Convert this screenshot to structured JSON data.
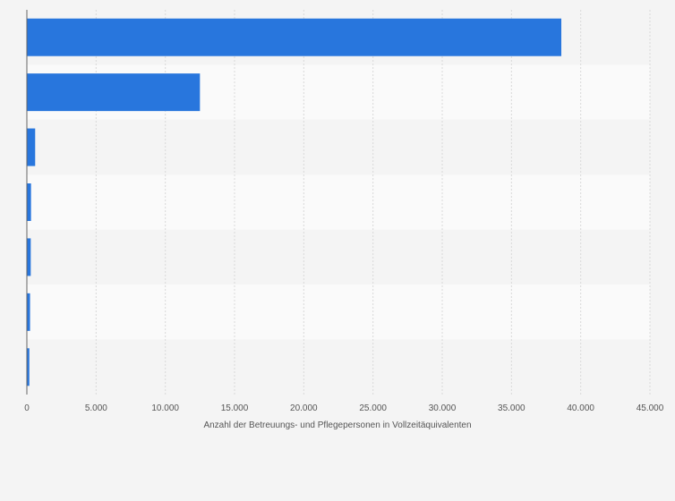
{
  "chart_data": {
    "type": "bar",
    "orientation": "horizontal",
    "categories": [
      "",
      "",
      "",
      "",
      "",
      "",
      ""
    ],
    "values": [
      38600,
      12500,
      600,
      300,
      280,
      230,
      180
    ],
    "xlabel": "Anzahl der Betreuungs- und Pflegepersonen in Vollzeitäquivalenten",
    "ylabel": "",
    "xlim": [
      0,
      45000
    ],
    "x_ticks": [
      0,
      5000,
      10000,
      15000,
      20000,
      25000,
      30000,
      35000,
      40000,
      45000
    ],
    "x_tick_labels": [
      "0",
      "5.000",
      "10.000",
      "15.000",
      "20.000",
      "25.000",
      "30.000",
      "35.000",
      "40.000",
      "45.000"
    ],
    "grid": "vertical",
    "legend": "none",
    "colors": {
      "bar": "#2876dd",
      "background": "#f4f4f4",
      "band_light": "#fafafa",
      "band_dark": "#f4f4f4",
      "grid": "#d9d9d9",
      "axis": "#666666",
      "text": "#555555"
    }
  }
}
